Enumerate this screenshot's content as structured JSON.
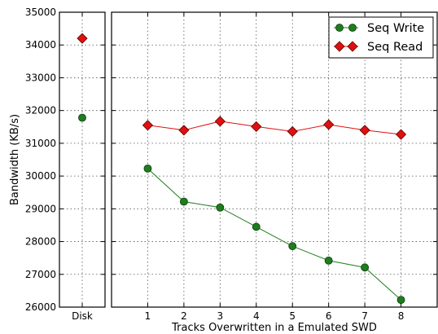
{
  "chart_data": {
    "type": "line",
    "xlabel": "Tracks Overwritten in a Emulated SWD",
    "ylabel": "Bandwidth (KB/s)",
    "ylim": [
      26000,
      35000
    ],
    "yticks": [
      "26000",
      "27000",
      "28000",
      "29000",
      "30000",
      "31000",
      "32000",
      "33000",
      "34000",
      "35000"
    ],
    "grid": true,
    "legend_position": "top-right",
    "panels": {
      "disk": {
        "categories": [
          "Disk"
        ],
        "series": [
          {
            "name": "Seq Write",
            "values": [
              31780
            ]
          },
          {
            "name": "Seq Read",
            "values": [
              34200
            ]
          }
        ]
      },
      "swd": {
        "x": [
          1,
          2,
          3,
          4,
          5,
          6,
          7,
          8
        ],
        "xticks": [
          "1",
          "2",
          "3",
          "4",
          "5",
          "6",
          "7",
          "8"
        ],
        "xlim": [
          0,
          9
        ],
        "series": [
          {
            "name": "Seq Write",
            "color": "#1e7d1e",
            "marker": "circle",
            "values": [
              30230,
              29220,
              29040,
              28450,
              27860,
              27420,
              27210,
              26220
            ]
          },
          {
            "name": "Seq Read",
            "color": "#e01010",
            "marker": "diamond",
            "values": [
              31550,
              31400,
              31670,
              31510,
              31360,
              31570,
              31400,
              31270
            ]
          }
        ]
      }
    }
  }
}
